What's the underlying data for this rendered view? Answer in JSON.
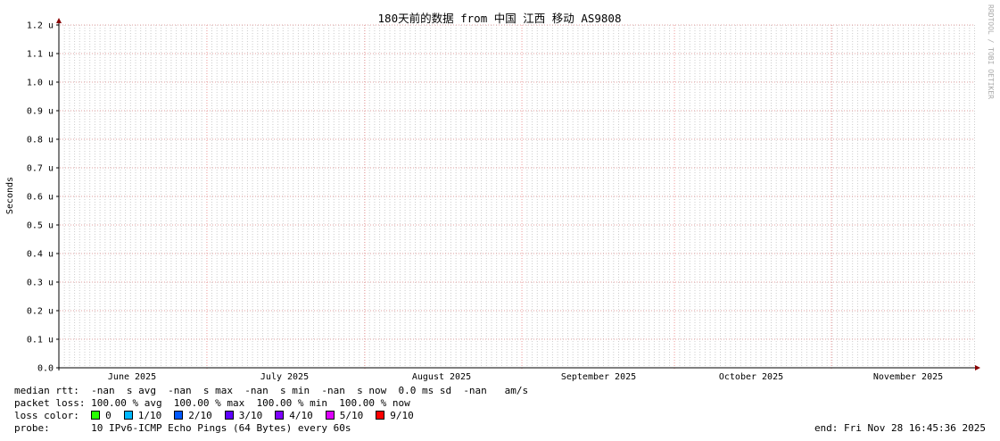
{
  "chart_data": {
    "type": "line",
    "title": "180天前的数据 from 中国 江西 移动 AS9808",
    "ylabel": "Seconds",
    "ylim": [
      0,
      1.2
    ],
    "yticks": [
      "0.0",
      "0.1 u",
      "0.2 u",
      "0.3 u",
      "0.4 u",
      "0.5 u",
      "0.6 u",
      "0.7 u",
      "0.8 u",
      "0.9 u",
      "1.0 u",
      "1.1 u",
      "1.2 u"
    ],
    "xticks": [
      "June 2025",
      "July 2025",
      "August 2025",
      "September 2025",
      "October 2025",
      "November 2025"
    ],
    "grid": true,
    "series": [],
    "watermark": "RRDTOOL / TOBI OETIKER"
  },
  "legend": {
    "median_rtt": "median rtt:  -nan  s avg  -nan  s max  -nan  s min  -nan  s now  0.0 ms sd  -nan   am/s",
    "packet_loss": "packet loss: 100.00 % avg  100.00 % max  100.00 % min  100.00 % now",
    "loss_color_label": "loss color:  ",
    "loss_colors": [
      {
        "label": "0",
        "color": "#26ff00"
      },
      {
        "label": "1/10",
        "color": "#00b8ff"
      },
      {
        "label": "2/10",
        "color": "#0059ff"
      },
      {
        "label": "3/10",
        "color": "#5e00ff"
      },
      {
        "label": "4/10",
        "color": "#7e00ff"
      },
      {
        "label": "5/10",
        "color": "#dd00ff"
      },
      {
        "label": "9/10",
        "color": "#ff0000"
      }
    ],
    "probe": "probe:       10 IPv6-ICMP Echo Pings (64 Bytes) every 60s",
    "end": "end: Fri Nov 28 16:45:36 2025"
  }
}
